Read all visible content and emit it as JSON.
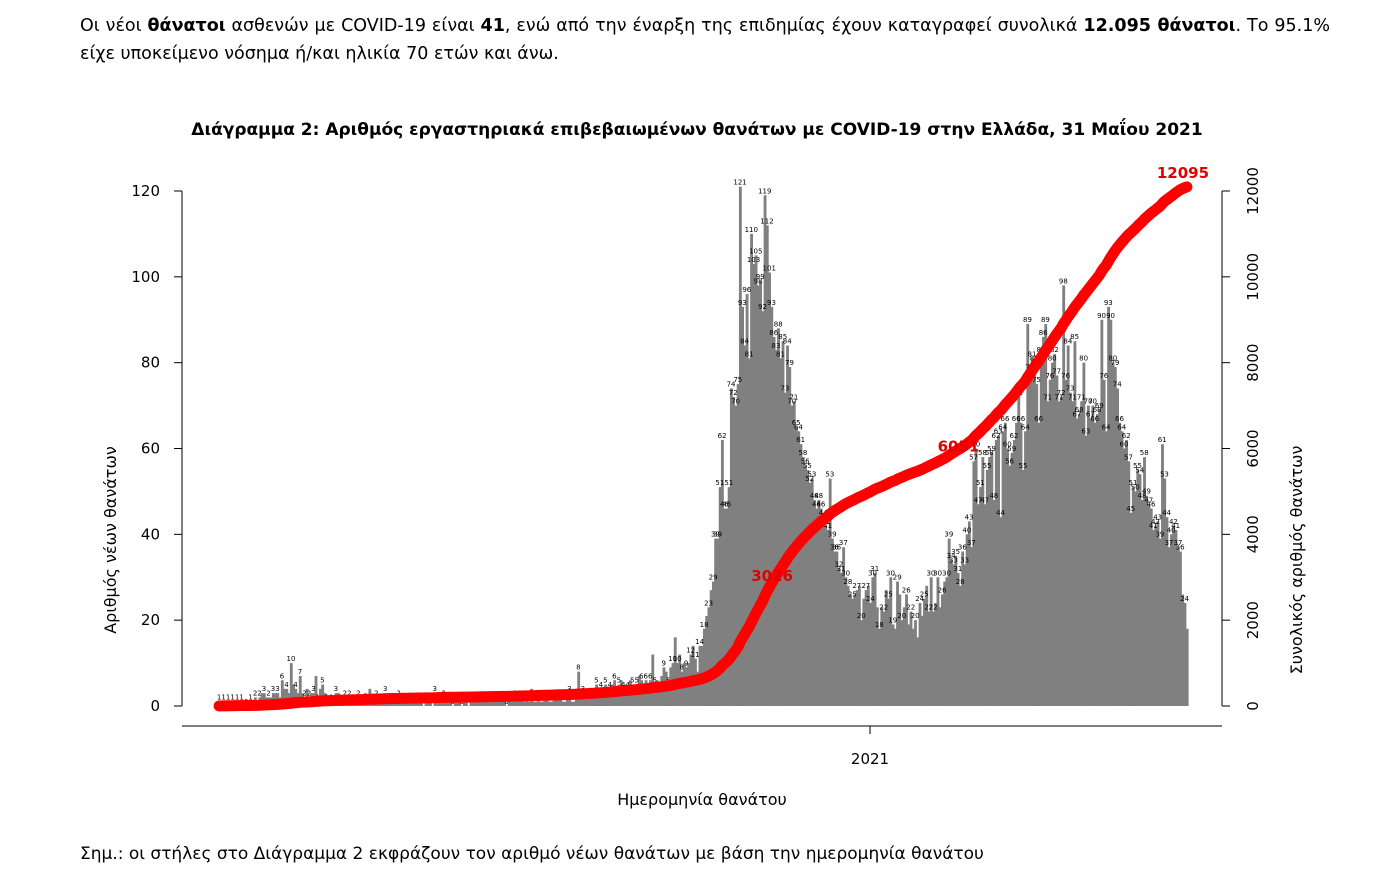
{
  "intro": {
    "p1_a": "Οι νέοι ",
    "p1_b": "θάνατοι",
    "p1_c": " ασθενών με COVID-19 είναι ",
    "p1_d": "41",
    "p1_e": ", ενώ από την έναρξη της επιδημίας έχουν καταγραφεί συνολικά ",
    "p1_f": "12.095 θάνατοι",
    "p1_g": ".  Το 95.1% είχε υποκείμενο νόσημα ή/και ηλικία 70 ετών και άνω."
  },
  "note": "Σημ.: οι στήλες στο Διάγραμμα 2 εκφράζουν τον αριθμό νέων θανάτων με βάση την ημερομηνία θανάτου",
  "chart_data": {
    "type": "bar",
    "title": "Διάγραμμα 2: Αριθμός εργαστηριακά επιβεβαιωμένων θανάτων με COVID-19 στην Ελλάδα, 31 Μαΐου 2021",
    "xlabel": "Ημερομηνία θανάτου",
    "ylabel": "Αριθμός νέων θανάτων",
    "y2label": "Συνολικός αριθμός θανάτων",
    "ylim": [
      0,
      120
    ],
    "y2lim": [
      0,
      12000
    ],
    "yticks": [
      0,
      20,
      40,
      60,
      80,
      100,
      120
    ],
    "y2ticks": [
      0,
      2000,
      4000,
      6000,
      8000,
      10000,
      12000
    ],
    "xtick_labels": [
      "2021"
    ],
    "colors": {
      "bars": "#808080",
      "cumulative": "#ff0000",
      "cum_label": "#e00000"
    },
    "cumulative_labels": [
      "3026",
      "6051",
      "12095"
    ],
    "series": [
      {
        "type": "bar",
        "name": "",
        "values": [
          1,
          1,
          1,
          1,
          1,
          1,
          1,
          1,
          1,
          1,
          1,
          0,
          0,
          1,
          1,
          1,
          2,
          0,
          2,
          3,
          3,
          2,
          2,
          2,
          3,
          3,
          3,
          2,
          6,
          4,
          4,
          3,
          10,
          5,
          4,
          3,
          7,
          3,
          2,
          4,
          2,
          3,
          3,
          7,
          1,
          4,
          5,
          3,
          1,
          2,
          1,
          1,
          3,
          3,
          1,
          2,
          2,
          1,
          2,
          2,
          1,
          2,
          2,
          1,
          1,
          3,
          1,
          4,
          1,
          2,
          2,
          1,
          1,
          2,
          3,
          1,
          1,
          2,
          1,
          1,
          2,
          1,
          1,
          1,
          1,
          1,
          1,
          1,
          1,
          1,
          1,
          0,
          1,
          1,
          1,
          0,
          3,
          1,
          1,
          2,
          2,
          1,
          1,
          1,
          0,
          1,
          1,
          1,
          0,
          1,
          1,
          0,
          1,
          1,
          1,
          2,
          1,
          1,
          1,
          1,
          1,
          1,
          1,
          1,
          1,
          1,
          1,
          1,
          0,
          1,
          1,
          1,
          2,
          1,
          2,
          2,
          1,
          2,
          1,
          4,
          1,
          1,
          2,
          1,
          1,
          2,
          2,
          1,
          1,
          2,
          2,
          2,
          2,
          1,
          1,
          2,
          3,
          1,
          1,
          2,
          8,
          2,
          3,
          2,
          2,
          4,
          2,
          3,
          5,
          3,
          4,
          3,
          5,
          3,
          4,
          5,
          6,
          4,
          5,
          6,
          4,
          5,
          4,
          6,
          5,
          3,
          5,
          7,
          6,
          5,
          6,
          3,
          6,
          12,
          5,
          6,
          4,
          7,
          9,
          8,
          5,
          9,
          10,
          16,
          10,
          12,
          8,
          10,
          9,
          10,
          12,
          14,
          11,
          8,
          14,
          14,
          18,
          21,
          23,
          27,
          29,
          39,
          39,
          51,
          62,
          46,
          46,
          51,
          74,
          72,
          70,
          75,
          121,
          93,
          84,
          96,
          81,
          110,
          103,
          105,
          98,
          99,
          92,
          119,
          112,
          101,
          93,
          86,
          83,
          88,
          81,
          85,
          73,
          84,
          79,
          70,
          71,
          65,
          64,
          61,
          58,
          56,
          55,
          52,
          53,
          48,
          46,
          48,
          46,
          44,
          42,
          41,
          53,
          39,
          36,
          36,
          32,
          31,
          37,
          30,
          28,
          26,
          25,
          26,
          27,
          28,
          20,
          25,
          27,
          28,
          24,
          30,
          31,
          23,
          18,
          23,
          22,
          27,
          25,
          30,
          19,
          18,
          29,
          26,
          20,
          23,
          26,
          19,
          22,
          18,
          20,
          16,
          24,
          21,
          25,
          28,
          22,
          30,
          22,
          24,
          30,
          23,
          26,
          29,
          30,
          39,
          34,
          33,
          35,
          31,
          28,
          36,
          33,
          40,
          43,
          37,
          57,
          60,
          47,
          51,
          58,
          47,
          55,
          58,
          59,
          48,
          62,
          63,
          44,
          64,
          66,
          60,
          56,
          59,
          62,
          66,
          72,
          66,
          55,
          64,
          89,
          78,
          81,
          80,
          75,
          66,
          82,
          86,
          89,
          71,
          76,
          80,
          82,
          77,
          71,
          72,
          98,
          76,
          84,
          73,
          71,
          85,
          67,
          68,
          71,
          80,
          63,
          70,
          67,
          70,
          66,
          68,
          69,
          90,
          76,
          64,
          93,
          90,
          80,
          79,
          74,
          66,
          64,
          60,
          62,
          57,
          45,
          51,
          50,
          55,
          54,
          48,
          58,
          49,
          47,
          46,
          41,
          42,
          43,
          39,
          61,
          53,
          44,
          37,
          40,
          42,
          41,
          37,
          36,
          26,
          24,
          18
        ],
        "labels_shown": true
      },
      {
        "type": "line",
        "name": "",
        "axis": "right",
        "values": []
      }
    ]
  }
}
